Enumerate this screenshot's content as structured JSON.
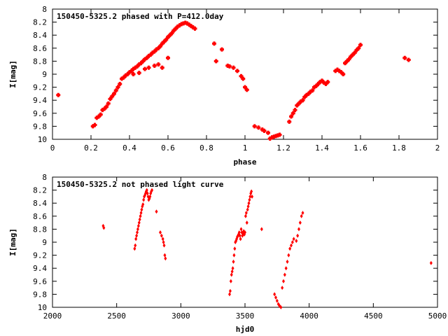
{
  "colors": {
    "marker": "#ff0000",
    "axis": "#000000",
    "background": "#ffffff"
  },
  "chart_data": [
    {
      "type": "scatter",
      "title": "150450-5325.2 phased with P=412.0day",
      "xlabel": "phase",
      "ylabel": "I[mag]",
      "xlim": [
        0,
        2
      ],
      "ylim": [
        8,
        10
      ],
      "y_inverted": true,
      "grid": false,
      "x_ticks": [
        "0",
        "0.2",
        "0.4",
        "0.6",
        "0.8",
        "1",
        "1.2",
        "1.4",
        "1.6",
        "1.8",
        "2"
      ],
      "y_ticks": [
        "8",
        "8.2",
        "8.4",
        "8.6",
        "8.8",
        "9",
        "9.2",
        "9.4",
        "9.6",
        "9.8",
        "10"
      ],
      "series": [
        {
          "marker": "plus",
          "x": [
            0.03,
            0.21,
            0.22,
            0.23,
            0.24,
            0.25,
            0.26,
            0.27,
            0.28,
            0.29,
            0.3,
            0.31,
            0.32,
            0.33,
            0.34,
            0.35,
            0.36,
            0.37,
            0.38,
            0.39,
            0.4,
            0.41,
            0.42,
            0.43,
            0.44,
            0.45,
            0.46,
            0.47,
            0.48,
            0.49,
            0.5,
            0.51,
            0.52,
            0.53,
            0.54,
            0.55,
            0.56,
            0.57,
            0.58,
            0.59,
            0.6,
            0.61,
            0.62,
            0.63,
            0.64,
            0.65,
            0.66,
            0.67,
            0.68,
            0.69,
            0.7,
            0.71,
            0.72,
            0.73,
            0.74,
            0.42,
            0.45,
            0.48,
            0.5,
            0.53,
            0.55,
            0.57,
            0.6,
            0.84,
            0.85,
            0.88,
            0.91,
            0.92,
            0.94,
            0.96,
            0.98,
            0.99,
            1.0,
            1.01,
            1.05,
            1.07,
            1.09,
            1.1,
            1.12,
            1.13,
            1.14,
            1.15,
            1.16,
            1.17,
            1.18,
            1.23,
            1.24,
            1.25,
            1.26,
            1.27,
            1.28,
            1.29,
            1.3,
            1.31,
            1.32,
            1.33,
            1.34,
            1.35,
            1.36,
            1.37,
            1.38,
            1.39,
            1.4,
            1.41,
            1.42,
            1.43,
            1.47,
            1.48,
            1.49,
            1.5,
            1.51,
            1.52,
            1.53,
            1.54,
            1.55,
            1.56,
            1.57,
            1.58,
            1.59,
            1.6,
            1.83,
            1.85
          ],
          "y": [
            9.32,
            9.8,
            9.78,
            9.67,
            9.65,
            9.62,
            9.55,
            9.53,
            9.5,
            9.45,
            9.38,
            9.34,
            9.3,
            9.25,
            9.2,
            9.15,
            9.07,
            9.05,
            9.02,
            9.0,
            8.97,
            8.95,
            8.92,
            8.9,
            8.88,
            8.85,
            8.83,
            8.8,
            8.77,
            8.75,
            8.72,
            8.7,
            8.67,
            8.65,
            8.62,
            8.6,
            8.57,
            8.53,
            8.5,
            8.47,
            8.43,
            8.4,
            8.37,
            8.33,
            8.3,
            8.27,
            8.25,
            8.23,
            8.22,
            8.21,
            8.22,
            8.24,
            8.26,
            8.28,
            8.3,
            9.0,
            8.98,
            8.92,
            8.9,
            8.87,
            8.85,
            8.9,
            8.75,
            8.53,
            8.8,
            8.62,
            8.87,
            8.88,
            8.9,
            8.95,
            9.03,
            9.07,
            9.2,
            9.24,
            9.8,
            9.82,
            9.85,
            9.87,
            9.9,
            9.99,
            9.97,
            9.96,
            9.95,
            9.94,
            9.93,
            9.73,
            9.65,
            9.6,
            9.55,
            9.48,
            9.45,
            9.42,
            9.4,
            9.35,
            9.32,
            9.3,
            9.27,
            9.25,
            9.2,
            9.18,
            9.15,
            9.12,
            9.1,
            9.13,
            9.15,
            9.12,
            8.95,
            8.93,
            8.95,
            8.97,
            9.0,
            8.83,
            8.8,
            8.77,
            8.73,
            8.7,
            8.67,
            8.63,
            8.6,
            8.55,
            8.75,
            8.78
          ]
        }
      ]
    },
    {
      "type": "scatter",
      "title": "150450-5325.2 not phased light curve",
      "xlabel": "hjd0",
      "ylabel": "I[mag]",
      "xlim": [
        2000,
        5000
      ],
      "ylim": [
        8,
        10
      ],
      "y_inverted": true,
      "grid": false,
      "x_ticks": [
        "2000",
        "2500",
        "3000",
        "3500",
        "4000",
        "4500",
        "5000"
      ],
      "y_ticks": [
        "8",
        "8.2",
        "8.4",
        "8.6",
        "8.8",
        "9",
        "9.2",
        "9.4",
        "9.6",
        "9.8",
        "10"
      ],
      "series": [
        {
          "marker": "diamond",
          "x": [
            2395,
            2400,
            2640,
            2645,
            2650,
            2655,
            2660,
            2665,
            2670,
            2675,
            2680,
            2685,
            2690,
            2695,
            2700,
            2705,
            2710,
            2715,
            2720,
            2725,
            2730,
            2735,
            2740,
            2745,
            2750,
            2755,
            2760,
            2765,
            2770,
            2775,
            2810,
            2840,
            2850,
            2860,
            2865,
            2870,
            2875,
            2880,
            3380,
            3385,
            3390,
            3395,
            3400,
            3405,
            3410,
            3415,
            3420,
            3425,
            3430,
            3435,
            3440,
            3445,
            3450,
            3455,
            3460,
            3465,
            3470,
            3475,
            3480,
            3485,
            3490,
            3495,
            3500,
            3505,
            3510,
            3515,
            3520,
            3525,
            3530,
            3535,
            3540,
            3545,
            3550,
            3555,
            3630,
            3730,
            3740,
            3750,
            3760,
            3770,
            3780,
            3790,
            3800,
            3810,
            3820,
            3830,
            3840,
            3850,
            3860,
            3870,
            3880,
            3900,
            3910,
            3920,
            3930,
            3940,
            3950,
            4950
          ],
          "y": [
            8.75,
            8.78,
            9.1,
            9.05,
            8.95,
            8.9,
            8.85,
            8.8,
            8.75,
            8.7,
            8.65,
            8.6,
            8.55,
            8.5,
            8.45,
            8.42,
            8.35,
            8.3,
            8.28,
            8.25,
            8.22,
            8.2,
            8.25,
            8.3,
            8.35,
            8.33,
            8.3,
            8.25,
            8.22,
            8.2,
            8.53,
            8.85,
            8.9,
            8.95,
            9.0,
            9.05,
            9.2,
            9.25,
            9.8,
            9.75,
            9.6,
            9.5,
            9.45,
            9.4,
            9.3,
            9.2,
            9.1,
            9.0,
            8.98,
            8.95,
            8.92,
            8.9,
            8.88,
            8.85,
            8.9,
            8.95,
            8.8,
            8.85,
            8.9,
            8.87,
            8.83,
            8.88,
            8.85,
            8.6,
            8.55,
            8.7,
            8.5,
            8.45,
            8.4,
            8.35,
            8.3,
            8.25,
            8.22,
            8.3,
            8.8,
            9.8,
            9.85,
            9.9,
            9.95,
            9.98,
            10.0,
            9.7,
            9.6,
            9.5,
            9.4,
            9.3,
            9.2,
            9.1,
            9.05,
            9.0,
            8.95,
            8.98,
            8.9,
            8.8,
            8.7,
            8.6,
            8.55,
            9.32
          ]
        }
      ]
    }
  ]
}
